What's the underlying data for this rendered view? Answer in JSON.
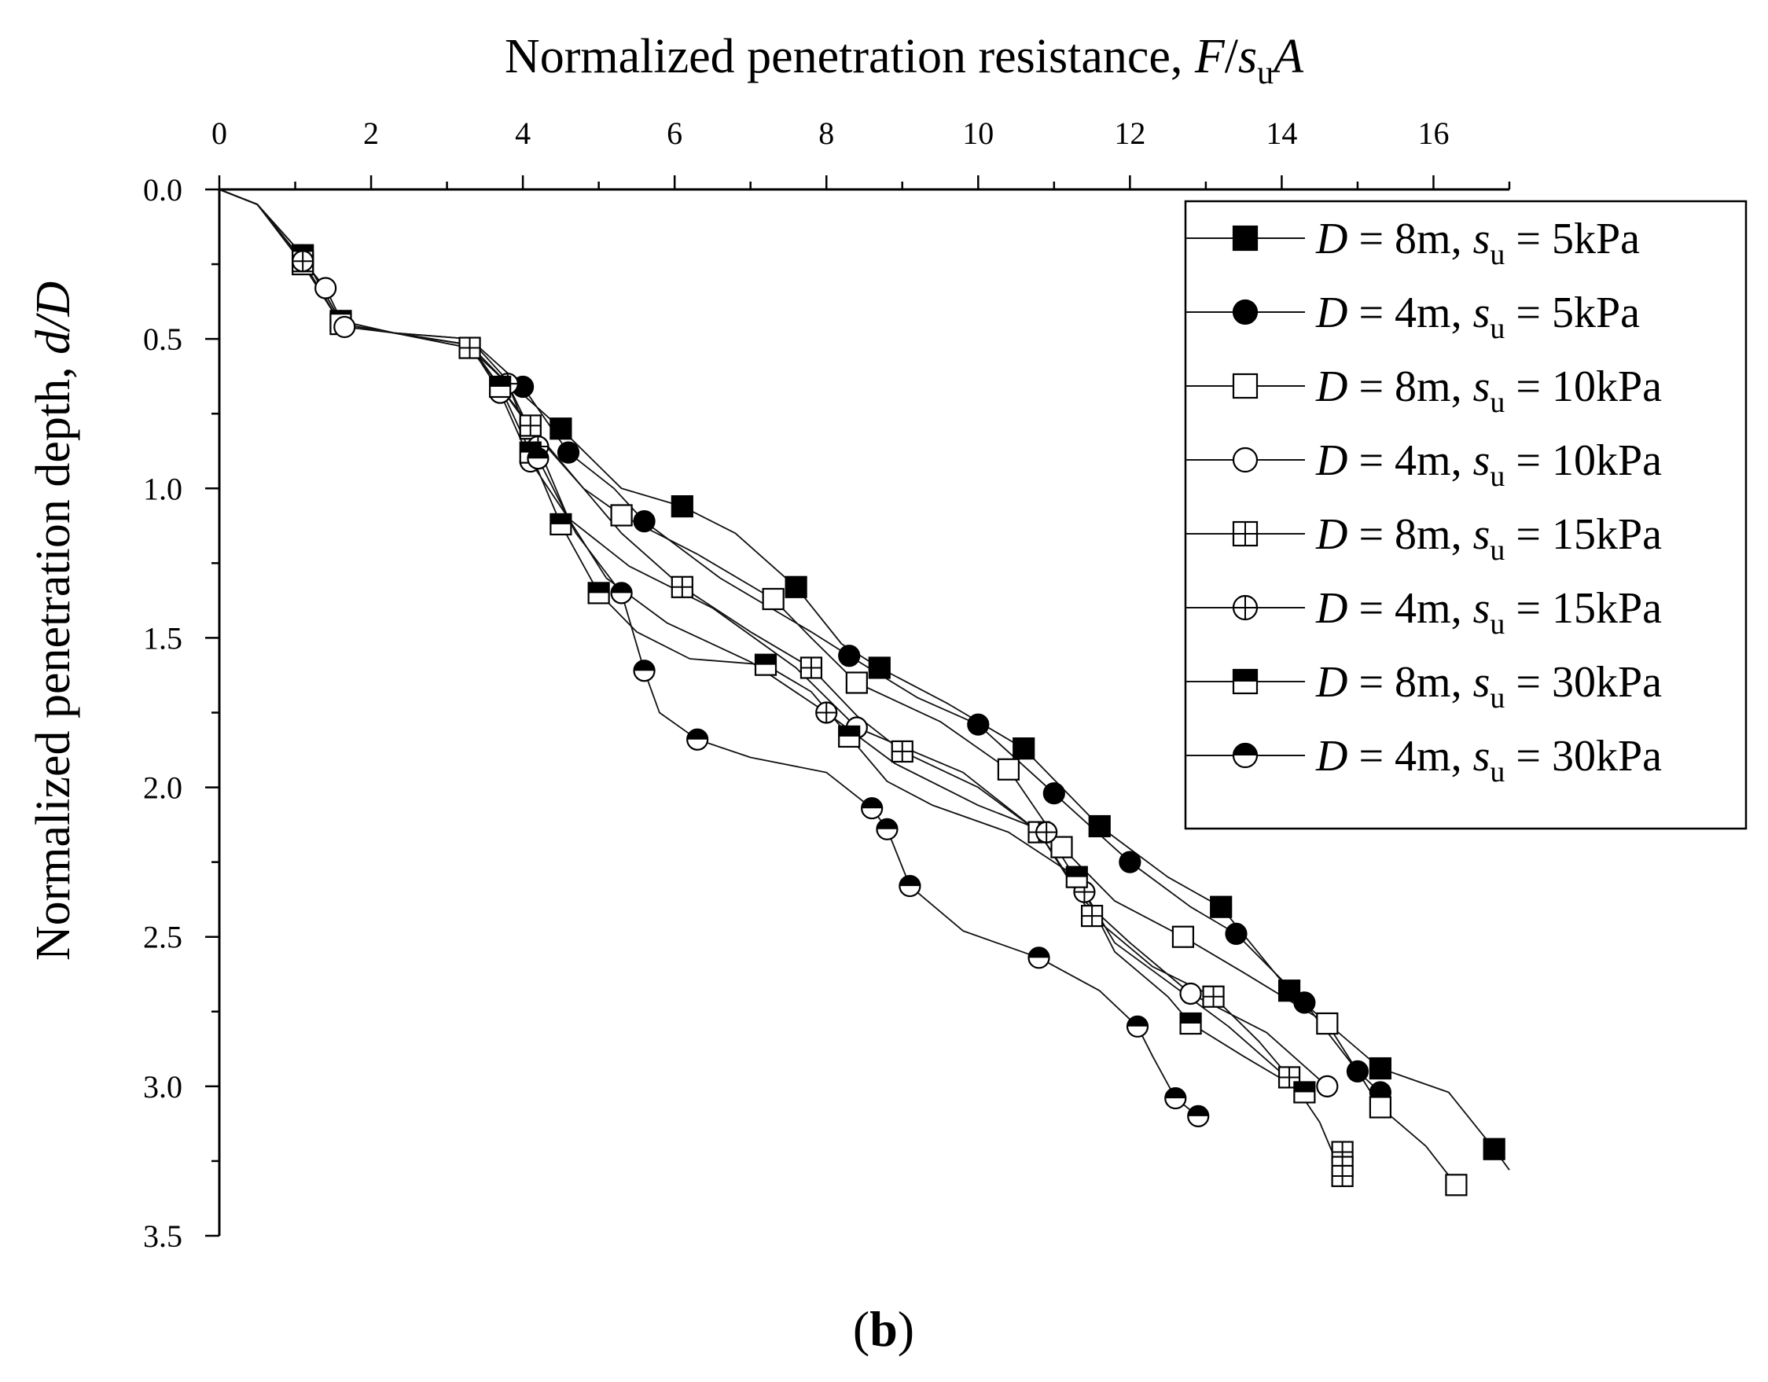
{
  "chart_data": {
    "type": "line",
    "title": "",
    "xlabel": {
      "prefix": "Normalized penetration resistance, ",
      "F": "F",
      "slash": "/",
      "s": "s",
      "sub": "u",
      "A": "A"
    },
    "ylabel": {
      "prefix": "Normalized penetration depth, ",
      "var": "d/D"
    },
    "xlim": [
      0,
      17
    ],
    "ylim": [
      3.5,
      0.0
    ],
    "x_axis_position": "top",
    "y_inverted": true,
    "x_ticks": [
      "0",
      "2",
      "4",
      "6",
      "8",
      "10",
      "12",
      "14",
      "16"
    ],
    "y_ticks": [
      "0.0",
      "0.5",
      "1.0",
      "1.5",
      "2.0",
      "2.5",
      "3.0",
      "3.5"
    ],
    "panel_label": {
      "open": "(",
      "letter": "b",
      "close": ")"
    },
    "legend_position": "top-right",
    "series": [
      {
        "name": "D = 8m, su = 5kPa",
        "D": "D",
        "eq1": " = 8m, ",
        "s": "s",
        "sub": "u",
        "eq2": " = 5kPa",
        "marker": "square-filled",
        "points": [
          [
            0,
            0.0
          ],
          [
            0.5,
            0.05
          ],
          [
            1.1,
            0.22
          ],
          [
            1.6,
            0.44
          ],
          [
            2.3,
            0.48
          ],
          [
            3.3,
            0.5
          ],
          [
            3.8,
            0.64
          ],
          [
            4.5,
            0.8
          ],
          [
            5.3,
            1.0
          ],
          [
            6.1,
            1.06
          ],
          [
            6.8,
            1.15
          ],
          [
            7.6,
            1.33
          ],
          [
            8.2,
            1.52
          ],
          [
            8.7,
            1.6
          ],
          [
            9.6,
            1.72
          ],
          [
            10.6,
            1.87
          ],
          [
            11.6,
            2.13
          ],
          [
            12.5,
            2.3
          ],
          [
            13.2,
            2.4
          ],
          [
            14.1,
            2.68
          ],
          [
            15.3,
            2.94
          ],
          [
            16.2,
            3.02
          ],
          [
            16.8,
            3.21
          ],
          [
            17.0,
            3.28
          ]
        ],
        "markers": [
          [
            1.1,
            0.22
          ],
          [
            1.6,
            0.44
          ],
          [
            4.5,
            0.8
          ],
          [
            6.1,
            1.06
          ],
          [
            7.6,
            1.33
          ],
          [
            8.7,
            1.6
          ],
          [
            10.6,
            1.87
          ],
          [
            11.6,
            2.13
          ],
          [
            13.2,
            2.4
          ],
          [
            14.1,
            2.68
          ],
          [
            15.3,
            2.94
          ],
          [
            16.8,
            3.21
          ]
        ]
      },
      {
        "name": "D = 4m, su = 5kPa",
        "D": "D",
        "eq1": " = 4m, ",
        "s": "s",
        "sub": "u",
        "eq2": " = 5kPa",
        "marker": "circle-filled",
        "points": [
          [
            0,
            0.0
          ],
          [
            0.5,
            0.05
          ],
          [
            1.1,
            0.22
          ],
          [
            1.6,
            0.44
          ],
          [
            2.3,
            0.48
          ],
          [
            3.3,
            0.5
          ],
          [
            4.0,
            0.66
          ],
          [
            4.6,
            0.88
          ],
          [
            5.2,
            1.0
          ],
          [
            5.6,
            1.11
          ],
          [
            6.6,
            1.3
          ],
          [
            7.8,
            1.48
          ],
          [
            8.3,
            1.56
          ],
          [
            9.2,
            1.7
          ],
          [
            10.0,
            1.79
          ],
          [
            11.0,
            2.02
          ],
          [
            12.0,
            2.25
          ],
          [
            12.8,
            2.4
          ],
          [
            13.4,
            2.49
          ],
          [
            14.3,
            2.72
          ],
          [
            15.0,
            2.95
          ],
          [
            15.3,
            3.02
          ]
        ],
        "markers": [
          [
            1.1,
            0.22
          ],
          [
            1.6,
            0.44
          ],
          [
            4.0,
            0.66
          ],
          [
            4.6,
            0.88
          ],
          [
            5.6,
            1.11
          ],
          [
            8.3,
            1.56
          ],
          [
            10.0,
            1.79
          ],
          [
            11.0,
            2.02
          ],
          [
            12.0,
            2.25
          ],
          [
            13.4,
            2.49
          ],
          [
            14.3,
            2.72
          ],
          [
            15.0,
            2.95
          ],
          [
            15.3,
            3.02
          ]
        ]
      },
      {
        "name": "D = 8m, su = 10kPa",
        "D": "D",
        "eq1": " = 8m, ",
        "s": "s",
        "sub": "u",
        "eq2": " = 10kPa",
        "marker": "square-open",
        "points": [
          [
            0,
            0.0
          ],
          [
            0.5,
            0.05
          ],
          [
            1.1,
            0.25
          ],
          [
            1.6,
            0.45
          ],
          [
            2.3,
            0.48
          ],
          [
            3.3,
            0.52
          ],
          [
            4.1,
            0.8
          ],
          [
            4.8,
            1.0
          ],
          [
            5.3,
            1.09
          ],
          [
            6.3,
            1.22
          ],
          [
            7.3,
            1.37
          ],
          [
            7.8,
            1.5
          ],
          [
            8.4,
            1.65
          ],
          [
            9.5,
            1.78
          ],
          [
            10.4,
            1.94
          ],
          [
            11.1,
            2.2
          ],
          [
            11.8,
            2.38
          ],
          [
            12.7,
            2.5
          ],
          [
            13.5,
            2.62
          ],
          [
            14.6,
            2.79
          ],
          [
            15.3,
            3.07
          ],
          [
            15.9,
            3.2
          ],
          [
            16.3,
            3.33
          ]
        ],
        "markers": [
          [
            1.1,
            0.25
          ],
          [
            1.6,
            0.45
          ],
          [
            4.1,
            0.8
          ],
          [
            5.3,
            1.09
          ],
          [
            7.3,
            1.37
          ],
          [
            8.4,
            1.65
          ],
          [
            10.4,
            1.94
          ],
          [
            11.1,
            2.2
          ],
          [
            12.7,
            2.5
          ],
          [
            14.6,
            2.79
          ],
          [
            15.3,
            3.07
          ],
          [
            16.3,
            3.33
          ]
        ]
      },
      {
        "name": "D = 4m, su = 10kPa",
        "D": "D",
        "eq1": " = 4m, ",
        "s": "s",
        "sub": "u",
        "eq2": " = 10kPa",
        "marker": "circle-open",
        "points": [
          [
            0,
            0.0
          ],
          [
            0.5,
            0.05
          ],
          [
            1.4,
            0.33
          ],
          [
            1.65,
            0.46
          ],
          [
            2.3,
            0.48
          ],
          [
            3.3,
            0.52
          ],
          [
            3.7,
            0.68
          ],
          [
            4.1,
            0.91
          ],
          [
            4.6,
            1.1
          ],
          [
            5.4,
            1.26
          ],
          [
            6.5,
            1.4
          ],
          [
            7.6,
            1.6
          ],
          [
            8.4,
            1.8
          ],
          [
            9.8,
            1.95
          ],
          [
            10.8,
            2.15
          ],
          [
            11.4,
            2.38
          ],
          [
            12.0,
            2.52
          ],
          [
            12.8,
            2.69
          ],
          [
            13.8,
            2.82
          ],
          [
            14.6,
            3.0
          ]
        ],
        "markers": [
          [
            1.4,
            0.33
          ],
          [
            1.65,
            0.46
          ],
          [
            3.7,
            0.68
          ],
          [
            4.1,
            0.91
          ],
          [
            8.4,
            1.8
          ],
          [
            12.8,
            2.69
          ],
          [
            14.6,
            3.0
          ]
        ]
      },
      {
        "name": "D = 8m, su = 15kPa",
        "D": "D",
        "eq1": " = 8m, ",
        "s": "s",
        "sub": "u",
        "eq2": " = 15kPa",
        "marker": "square-cross",
        "points": [
          [
            0,
            0.0
          ],
          [
            0.5,
            0.05
          ],
          [
            1.1,
            0.24
          ],
          [
            1.6,
            0.45
          ],
          [
            2.3,
            0.48
          ],
          [
            3.3,
            0.53
          ],
          [
            4.1,
            0.79
          ],
          [
            4.8,
            1.0
          ],
          [
            5.3,
            1.15
          ],
          [
            6.1,
            1.33
          ],
          [
            7.0,
            1.48
          ],
          [
            7.8,
            1.6
          ],
          [
            8.4,
            1.76
          ],
          [
            9.0,
            1.88
          ],
          [
            10.0,
            2.0
          ],
          [
            10.8,
            2.15
          ],
          [
            11.5,
            2.43
          ],
          [
            12.3,
            2.6
          ],
          [
            13.1,
            2.7
          ],
          [
            13.7,
            2.85
          ],
          [
            14.1,
            2.97
          ],
          [
            14.5,
            3.12
          ],
          [
            14.8,
            3.3
          ]
        ],
        "markers": [
          [
            1.1,
            0.24
          ],
          [
            3.3,
            0.53
          ],
          [
            4.1,
            0.79
          ],
          [
            6.1,
            1.33
          ],
          [
            7.8,
            1.6
          ],
          [
            9.0,
            1.88
          ],
          [
            10.8,
            2.15
          ],
          [
            11.5,
            2.43
          ],
          [
            13.1,
            2.7
          ],
          [
            14.1,
            2.97
          ],
          [
            14.8,
            3.22
          ],
          [
            14.8,
            3.27
          ],
          [
            14.8,
            3.3
          ]
        ]
      },
      {
        "name": "D = 4m, su = 15kPa",
        "D": "D",
        "eq1": " = 4m, ",
        "s": "s",
        "sub": "u",
        "eq2": " = 15kPa",
        "marker": "circle-cross",
        "points": [
          [
            0,
            0.0
          ],
          [
            0.5,
            0.05
          ],
          [
            1.1,
            0.24
          ],
          [
            1.6,
            0.45
          ],
          [
            2.3,
            0.48
          ],
          [
            3.3,
            0.53
          ],
          [
            3.8,
            0.65
          ],
          [
            4.2,
            0.86
          ],
          [
            4.6,
            1.1
          ],
          [
            5.1,
            1.3
          ],
          [
            5.9,
            1.45
          ],
          [
            7.0,
            1.58
          ],
          [
            8.0,
            1.75
          ],
          [
            8.9,
            1.92
          ],
          [
            10.0,
            2.06
          ],
          [
            10.9,
            2.15
          ],
          [
            11.4,
            2.35
          ],
          [
            11.8,
            2.52
          ],
          [
            12.5,
            2.65
          ],
          [
            13.3,
            2.8
          ],
          [
            14.2,
            3.0
          ]
        ],
        "markers": [
          [
            1.1,
            0.24
          ],
          [
            3.8,
            0.65
          ],
          [
            4.2,
            0.86
          ],
          [
            8.0,
            1.75
          ],
          [
            10.9,
            2.15
          ],
          [
            11.4,
            2.35
          ]
        ]
      },
      {
        "name": "D = 8m, su = 30kPa",
        "D": "D",
        "eq1": " = 8m, ",
        "s": "s",
        "sub": "u",
        "eq2": " = 30kPa",
        "marker": "square-half",
        "points": [
          [
            0,
            0.0
          ],
          [
            0.5,
            0.05
          ],
          [
            1.1,
            0.24
          ],
          [
            1.6,
            0.45
          ],
          [
            2.3,
            0.48
          ],
          [
            3.3,
            0.52
          ],
          [
            3.7,
            0.66
          ],
          [
            4.1,
            0.88
          ],
          [
            4.5,
            1.12
          ],
          [
            5.0,
            1.35
          ],
          [
            5.5,
            1.48
          ],
          [
            6.2,
            1.57
          ],
          [
            7.2,
            1.59
          ],
          [
            7.8,
            1.68
          ],
          [
            8.3,
            1.83
          ],
          [
            8.8,
            1.98
          ],
          [
            9.4,
            2.06
          ],
          [
            10.4,
            2.15
          ],
          [
            11.3,
            2.3
          ],
          [
            11.8,
            2.55
          ],
          [
            12.5,
            2.7
          ],
          [
            12.8,
            2.79
          ],
          [
            13.5,
            2.9
          ],
          [
            14.3,
            3.02
          ]
        ],
        "markers": [
          [
            3.7,
            0.66
          ],
          [
            4.1,
            0.88
          ],
          [
            4.5,
            1.12
          ],
          [
            5.0,
            1.35
          ],
          [
            7.2,
            1.59
          ],
          [
            8.3,
            1.83
          ],
          [
            11.3,
            2.3
          ],
          [
            12.8,
            2.79
          ],
          [
            14.3,
            3.02
          ]
        ]
      },
      {
        "name": "D = 4m, su = 30kPa",
        "D": "D",
        "eq1": " = 4m, ",
        "s": "s",
        "sub": "u",
        "eq2": " = 30kPa",
        "marker": "circle-half",
        "points": [
          [
            0,
            0.0
          ],
          [
            0.5,
            0.05
          ],
          [
            1.1,
            0.24
          ],
          [
            1.6,
            0.45
          ],
          [
            2.3,
            0.48
          ],
          [
            3.3,
            0.52
          ],
          [
            3.8,
            0.65
          ],
          [
            4.2,
            0.9
          ],
          [
            4.7,
            1.15
          ],
          [
            5.3,
            1.35
          ],
          [
            5.6,
            1.61
          ],
          [
            5.8,
            1.75
          ],
          [
            6.3,
            1.84
          ],
          [
            7.0,
            1.9
          ],
          [
            8.0,
            1.95
          ],
          [
            8.6,
            2.07
          ],
          [
            8.8,
            2.14
          ],
          [
            9.1,
            2.33
          ],
          [
            9.8,
            2.48
          ],
          [
            10.8,
            2.57
          ],
          [
            11.6,
            2.68
          ],
          [
            12.1,
            2.8
          ],
          [
            12.3,
            2.9
          ],
          [
            12.6,
            3.04
          ],
          [
            12.9,
            3.1
          ]
        ],
        "markers": [
          [
            4.2,
            0.9
          ],
          [
            5.3,
            1.35
          ],
          [
            5.6,
            1.61
          ],
          [
            6.3,
            1.84
          ],
          [
            8.6,
            2.07
          ],
          [
            8.8,
            2.14
          ],
          [
            9.1,
            2.33
          ],
          [
            10.8,
            2.57
          ],
          [
            12.1,
            2.8
          ],
          [
            12.6,
            3.04
          ],
          [
            12.9,
            3.1
          ]
        ]
      }
    ]
  }
}
